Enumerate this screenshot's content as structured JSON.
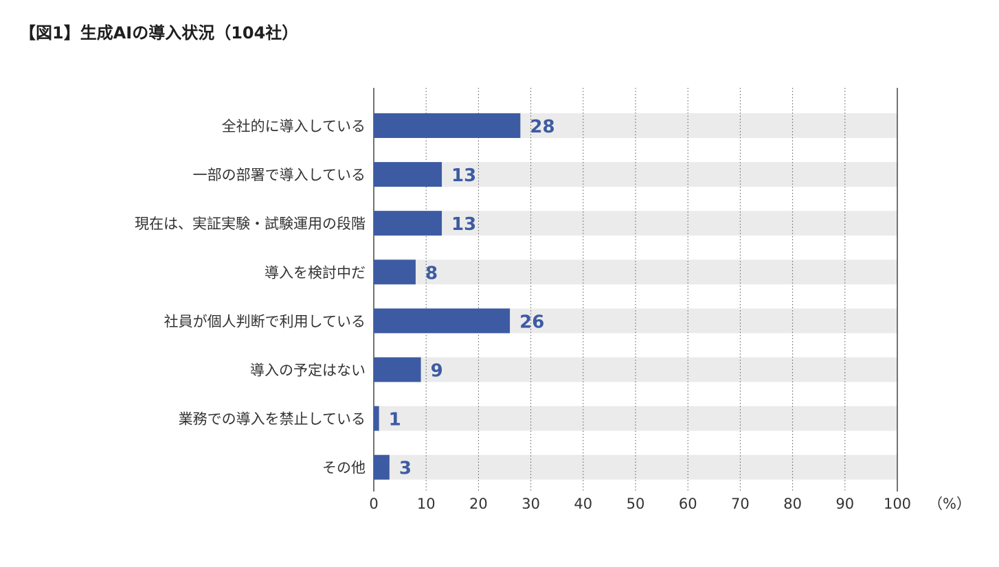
{
  "title": "【図1】生成AIの導入状況（104社）",
  "colors": {
    "bar": "#3d5ba3",
    "track": "#ebebeb",
    "value_text": "#3d5ba3",
    "grid": "#555555",
    "axis": "#444444"
  },
  "chart_data": {
    "type": "bar",
    "orientation": "horizontal",
    "categories": [
      "全社的に導入している",
      "一部の部署で導入している",
      "現在は、実証実験・試験運用の段階",
      "導入を検討中だ",
      "社員が個人判断で利用している",
      "導入の予定はない",
      "業務での導入を禁止している",
      "その他"
    ],
    "values": [
      28,
      13,
      13,
      8,
      26,
      9,
      1,
      3
    ],
    "xlim": [
      0,
      100
    ],
    "xticks": [
      0,
      10,
      20,
      30,
      40,
      50,
      60,
      70,
      80,
      90,
      100
    ],
    "xunit": "（%）",
    "grid": "vertical-dotted",
    "legend": "none"
  }
}
